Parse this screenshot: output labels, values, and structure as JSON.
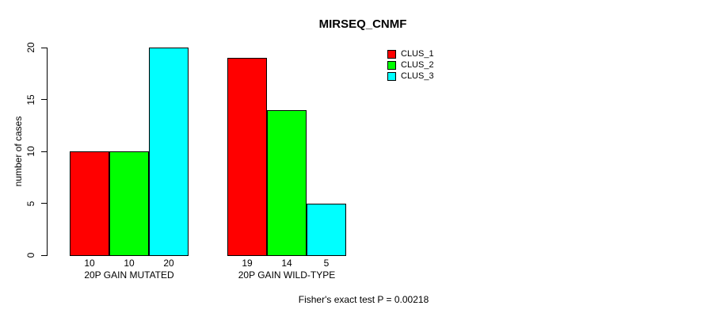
{
  "chart_data": {
    "type": "bar",
    "title": "MIRSEQ_CNMF",
    "ylabel": "number of cases",
    "xlabel": "",
    "footer": "Fisher's exact test P = 0.00218",
    "categories": [
      "20P GAIN MUTATED",
      "20P GAIN WILD-TYPE"
    ],
    "series": [
      {
        "name": "CLUS_1",
        "color": "#FF0000",
        "values": [
          10,
          19
        ]
      },
      {
        "name": "CLUS_2",
        "color": "#00FF00",
        "values": [
          10,
          14
        ]
      },
      {
        "name": "CLUS_3",
        "color": "#00FFFF",
        "values": [
          20,
          5
        ]
      }
    ],
    "bar_value_labels_shown": true,
    "yticks": [
      0,
      5,
      10,
      15,
      20
    ],
    "ylim": [
      0,
      20
    ],
    "grid": false,
    "legend_position": "top-right",
    "bar_border_color": "#000000",
    "axis_color": "#000000",
    "text_color": "#000000",
    "background_color": "#FFFFFF"
  }
}
